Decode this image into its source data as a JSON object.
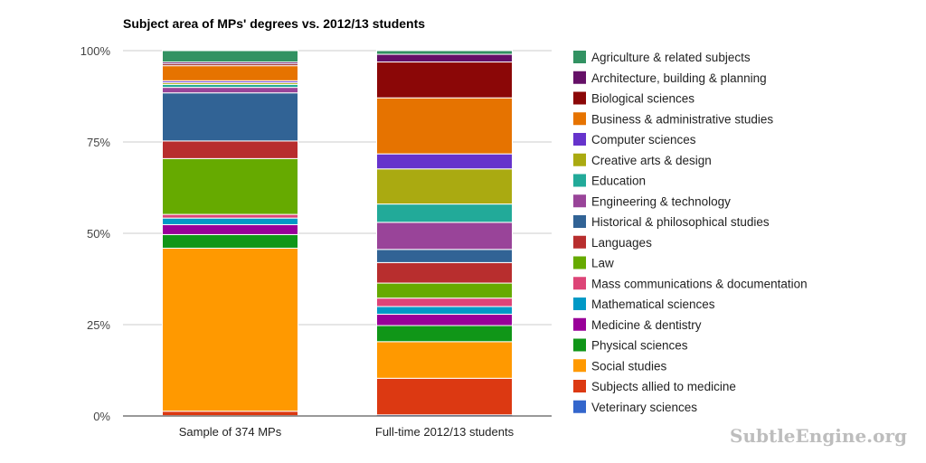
{
  "chart_data": {
    "type": "bar",
    "stacked": true,
    "percent_stacked": true,
    "title": "Subject area of MPs' degrees vs. 2012/13 students",
    "xlabel": "",
    "ylabel": "",
    "ylim": [
      0,
      100
    ],
    "yticks": [
      "0%",
      "25%",
      "50%",
      "75%",
      "100%"
    ],
    "grid": true,
    "legend_position": "right",
    "categories": [
      "Sample of 374 MPs",
      "Full-time 2012/13 students"
    ],
    "series": [
      {
        "name": "Veterinary sciences",
        "color": "#3366cc",
        "values": [
          0.1,
          0.3
        ]
      },
      {
        "name": "Subjects allied to medicine",
        "color": "#dc3912",
        "values": [
          1.2,
          10.0
        ]
      },
      {
        "name": "Social studies",
        "color": "#ff9900",
        "values": [
          44.4,
          10.0
        ]
      },
      {
        "name": "Physical sciences",
        "color": "#109618",
        "values": [
          3.7,
          4.4
        ]
      },
      {
        "name": "Medicine & dentistry",
        "color": "#990099",
        "values": [
          2.7,
          3.1
        ]
      },
      {
        "name": "Mathematical sciences",
        "color": "#0099c6",
        "values": [
          1.8,
          2.1
        ]
      },
      {
        "name": "Mass communications & documentation",
        "color": "#dd4477",
        "values": [
          1.0,
          2.3
        ]
      },
      {
        "name": "Law",
        "color": "#66aa00",
        "values": [
          15.2,
          4.1
        ]
      },
      {
        "name": "Languages",
        "color": "#b82e2e",
        "values": [
          4.8,
          5.6
        ]
      },
      {
        "name": "Historical & philosophical studies",
        "color": "#316395",
        "values": [
          13.1,
          3.6
        ]
      },
      {
        "name": "Engineering & technology",
        "color": "#994499",
        "values": [
          1.5,
          7.4
        ]
      },
      {
        "name": "Education",
        "color": "#22aa99",
        "values": [
          0.8,
          5.0
        ]
      },
      {
        "name": "Creative arts & design",
        "color": "#aaaa11",
        "values": [
          0.5,
          9.6
        ]
      },
      {
        "name": "Computer sciences",
        "color": "#6633cc",
        "values": [
          0.5,
          4.1
        ]
      },
      {
        "name": "Business & administrative studies",
        "color": "#e67300",
        "values": [
          4.1,
          15.3
        ]
      },
      {
        "name": "Biological sciences",
        "color": "#8b0707",
        "values": [
          0.5,
          9.8
        ]
      },
      {
        "name": "Architecture, building & planning",
        "color": "#651067",
        "values": [
          0.5,
          2.1
        ]
      },
      {
        "name": "Agriculture & related subjects",
        "color": "#329262",
        "values": [
          3.1,
          1.0
        ]
      }
    ],
    "legend_order": [
      "Agriculture & related subjects",
      "Architecture, building & planning",
      "Biological sciences",
      "Business & administrative studies",
      "Computer sciences",
      "Creative arts & design",
      "Education",
      "Engineering & technology",
      "Historical & philosophical studies",
      "Languages",
      "Law",
      "Mass communications & documentation",
      "Mathematical sciences",
      "Medicine & dentistry",
      "Physical sciences",
      "Social studies",
      "Subjects allied to medicine",
      "Veterinary sciences"
    ]
  },
  "watermark": "SubtleEngine.org",
  "colors": {
    "gridline": "#cccccc",
    "baseline": "#333333",
    "background": "#ffffff"
  }
}
